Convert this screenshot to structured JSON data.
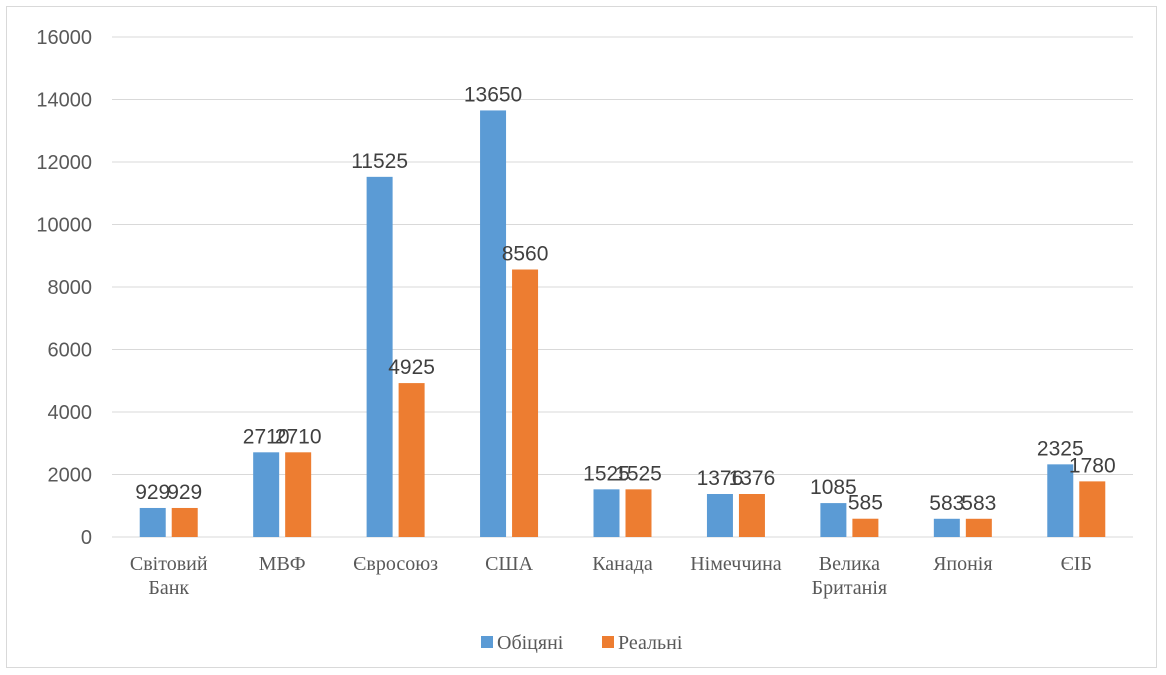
{
  "chart_data": {
    "type": "bar",
    "title": "",
    "xlabel": "",
    "ylabel": "",
    "categories": [
      [
        "Світовий",
        "Банк"
      ],
      [
        "МВФ"
      ],
      [
        "Євросоюз"
      ],
      [
        "США"
      ],
      [
        "Канада"
      ],
      [
        "Німеччина"
      ],
      [
        "Велика",
        "Британія"
      ],
      [
        "Японія"
      ],
      [
        "ЄІБ"
      ]
    ],
    "series": [
      {
        "name": "Обіцяні",
        "color": "#5b9bd5",
        "values": [
          929,
          2710,
          11525,
          13650,
          1525,
          1376,
          1085,
          583,
          2325
        ]
      },
      {
        "name": "Реальні",
        "color": "#ed7d31",
        "values": [
          929,
          2710,
          4925,
          8560,
          1525,
          1376,
          585,
          583,
          1780
        ]
      }
    ],
    "ylim": [
      0,
      16000
    ],
    "yticks": [
      0,
      2000,
      4000,
      6000,
      8000,
      10000,
      12000,
      14000,
      16000
    ],
    "grid": true,
    "legend_position": "bottom"
  }
}
